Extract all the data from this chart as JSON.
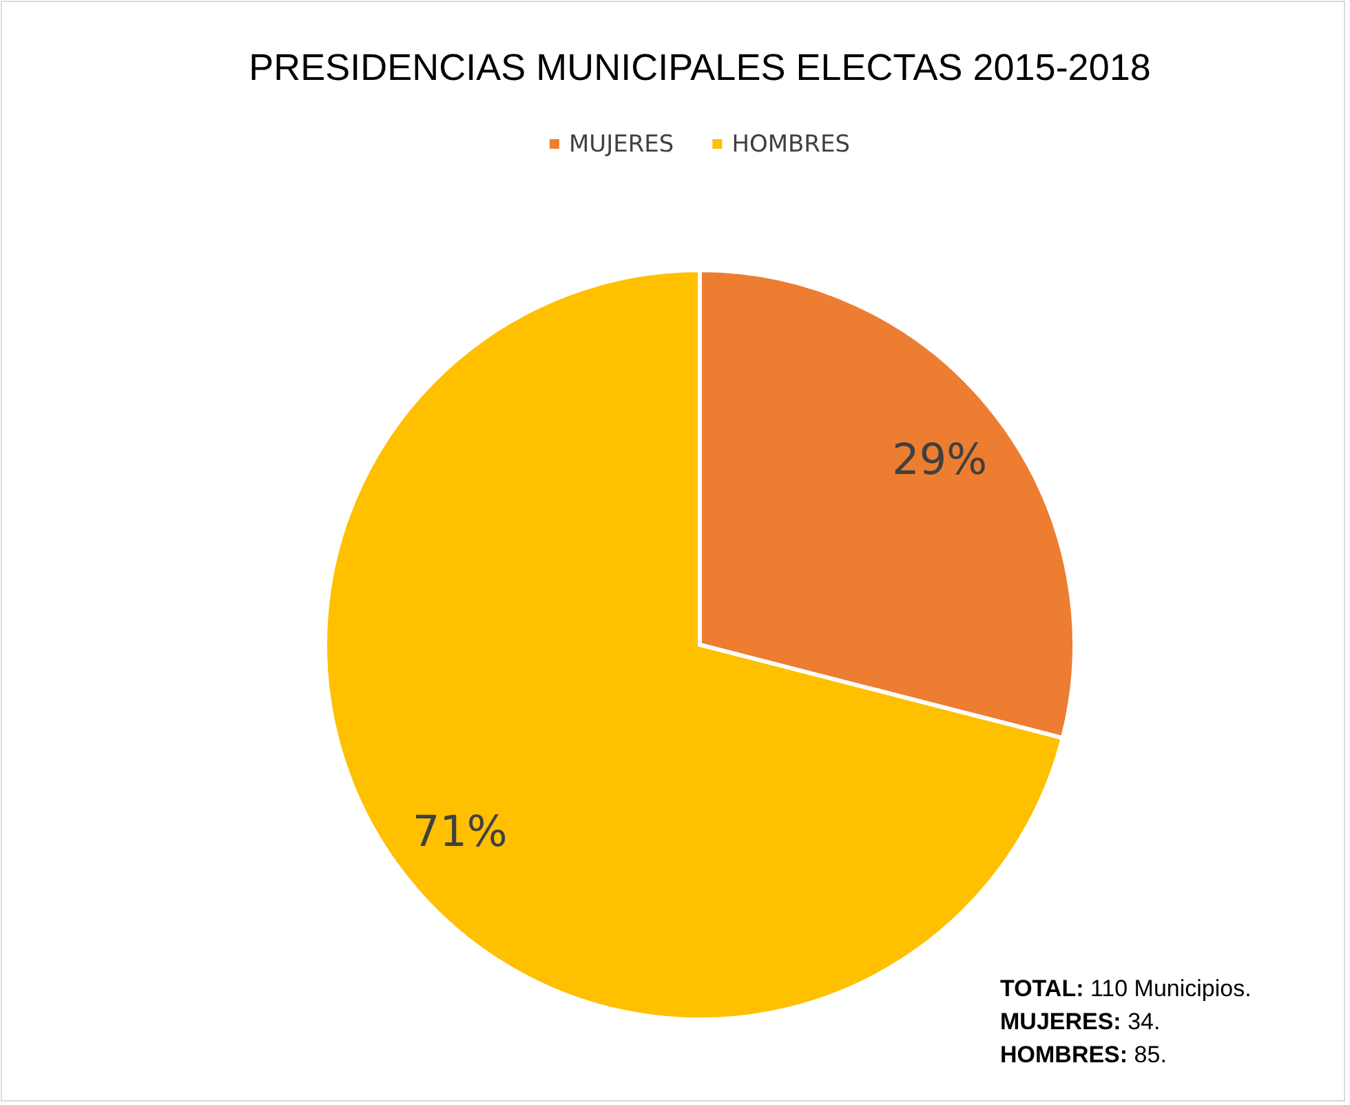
{
  "chart_data": {
    "type": "pie",
    "title": "PRESIDENCIAS MUNICIPALES ELECTAS 2015-2018",
    "categories": [
      "MUJERES",
      "HOMBRES"
    ],
    "values": [
      29,
      71
    ],
    "colors": [
      "#ed7d31",
      "#ffc000"
    ],
    "value_labels": [
      "29%",
      "71%"
    ],
    "legend": "top",
    "annotations": [
      "TOTAL: 110 Municipios.",
      "MUJERES: 34.",
      "HOMBRES: 85."
    ]
  }
}
